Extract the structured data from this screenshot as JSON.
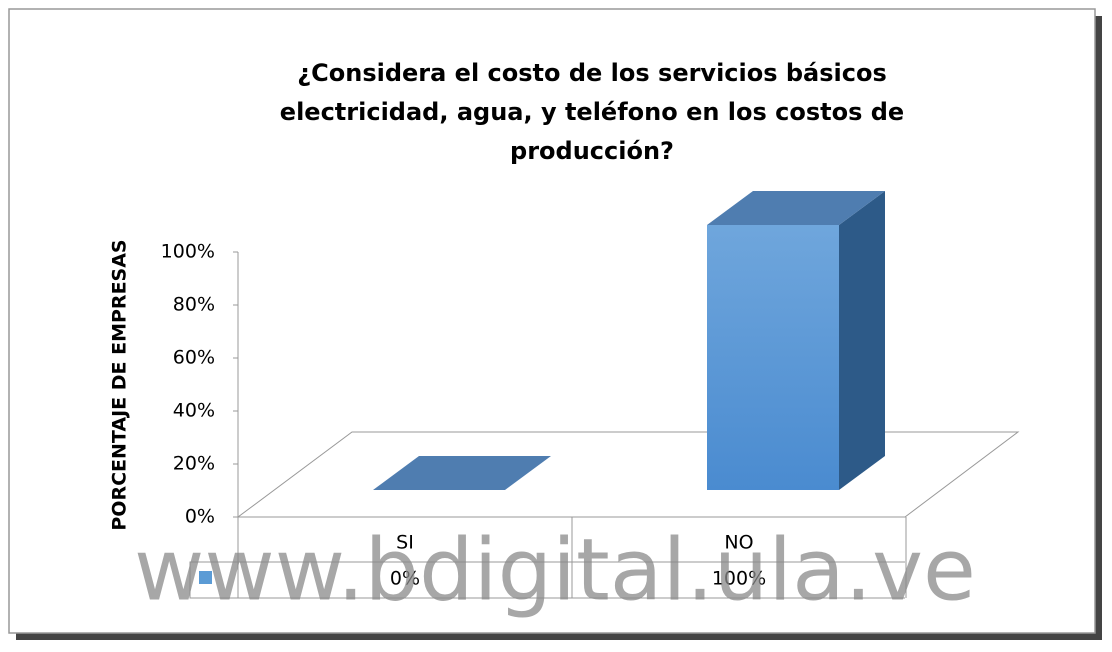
{
  "chart_data": {
    "type": "bar3d",
    "title": "¿Considera el costo de los servicios básicos electricidad, agua, y teléfono en los costos de producción?",
    "y_label": "PORCENTAJE DE EMPRESAS",
    "categories": [
      "SI",
      "NO"
    ],
    "values": [
      0,
      100
    ],
    "value_labels": [
      "0%",
      "100%"
    ],
    "color": "#5b9bd5",
    "ylim": [
      0,
      100
    ],
    "yticks": [
      {
        "value": 0,
        "label": "0%"
      },
      {
        "value": 20,
        "label": "20%"
      },
      {
        "value": 40,
        "label": "40%"
      },
      {
        "value": 60,
        "label": "60%"
      },
      {
        "value": 80,
        "label": "80%"
      },
      {
        "value": 100,
        "label": "100%"
      }
    ],
    "data_table": true,
    "watermark": "www.bdigital.ula.ve"
  }
}
